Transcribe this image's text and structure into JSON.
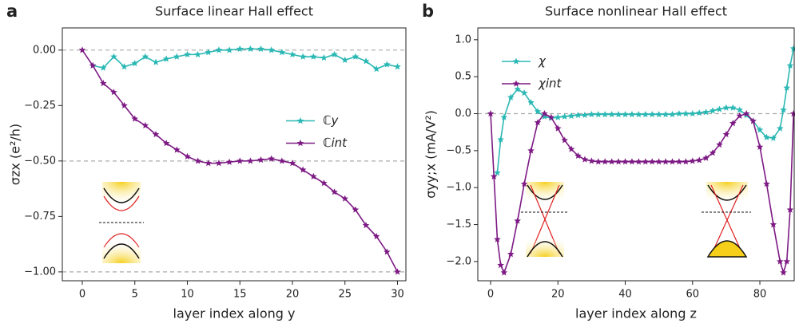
{
  "chart_data": [
    {
      "type": "line",
      "panel": "a",
      "title": "Surface linear Hall effect",
      "xlabel": "layer index along y",
      "ylabel": "σzx (e²/h)",
      "x": [
        0,
        1,
        2,
        3,
        4,
        5,
        6,
        7,
        8,
        9,
        10,
        11,
        12,
        13,
        14,
        15,
        16,
        17,
        18,
        19,
        20,
        21,
        22,
        23,
        24,
        25,
        26,
        27,
        28,
        29,
        30
      ],
      "series": [
        {
          "name": "ℂy",
          "color": "#2bb8b4",
          "values": [
            null,
            -0.07,
            -0.08,
            -0.03,
            -0.075,
            -0.06,
            -0.03,
            -0.055,
            -0.04,
            -0.03,
            -0.02,
            -0.02,
            -0.01,
            0.0,
            0.0,
            0.005,
            0.005,
            0.005,
            0.0,
            -0.01,
            -0.02,
            -0.03,
            -0.03,
            -0.035,
            -0.02,
            -0.045,
            -0.03,
            -0.05,
            -0.085,
            -0.065,
            -0.075
          ]
        },
        {
          "name": "ℂint",
          "color": "#7d1a84",
          "values": [
            0.0,
            -0.07,
            -0.15,
            -0.19,
            -0.25,
            -0.31,
            -0.34,
            -0.38,
            -0.42,
            -0.45,
            -0.48,
            -0.5,
            -0.51,
            -0.51,
            -0.505,
            -0.5,
            -0.5,
            -0.495,
            -0.49,
            -0.5,
            -0.51,
            -0.54,
            -0.57,
            -0.6,
            -0.64,
            -0.67,
            -0.72,
            -0.79,
            -0.84,
            -0.91,
            -1.0
          ]
        }
      ],
      "xlim": [
        -1.9,
        30.8
      ],
      "ylim": [
        -1.04,
        0.1
      ],
      "xticks": [
        0,
        5,
        10,
        15,
        20,
        25,
        30
      ],
      "yticks": [
        {
          "value": 0,
          "label": "0.00"
        },
        {
          "value": -0.25,
          "label": "−0.25"
        },
        {
          "value": -0.5,
          "label": "−0.50"
        },
        {
          "value": -0.75,
          "label": "−0.75"
        },
        {
          "value": -1,
          "label": "−1.00"
        }
      ],
      "reference_lines": [
        0,
        -0.5,
        -1
      ],
      "legend": "center right"
    },
    {
      "type": "line",
      "panel": "b",
      "title": "Surface nonlinear Hall effect",
      "xlabel": "layer index along z",
      "ylabel": "σyy;x (mA/V²)",
      "x": [
        0,
        1,
        2,
        3,
        4,
        6,
        8,
        10,
        12,
        14,
        16,
        18,
        20,
        22,
        24,
        26,
        28,
        30,
        32,
        34,
        36,
        38,
        40,
        42,
        44,
        46,
        48,
        50,
        52,
        54,
        56,
        58,
        60,
        62,
        64,
        66,
        68,
        70,
        72,
        74,
        76,
        78,
        80,
        82,
        84,
        86,
        87,
        88,
        89,
        90
      ],
      "series": [
        {
          "name": "χ",
          "color": "#2bb8b4",
          "values": [
            null,
            null,
            -0.8,
            -0.35,
            -0.05,
            0.22,
            0.33,
            0.28,
            0.15,
            0.03,
            -0.04,
            -0.06,
            -0.05,
            -0.04,
            -0.03,
            -0.02,
            -0.02,
            -0.01,
            -0.01,
            -0.01,
            -0.01,
            -0.01,
            -0.01,
            -0.01,
            -0.01,
            -0.01,
            -0.01,
            -0.01,
            -0.01,
            -0.01,
            0.0,
            0.0,
            0.0,
            0.01,
            0.02,
            0.04,
            0.06,
            0.08,
            0.08,
            0.05,
            -0.02,
            -0.1,
            -0.22,
            -0.32,
            -0.33,
            -0.2,
            0.05,
            0.35,
            0.65,
            0.88
          ]
        },
        {
          "name": "χint",
          "color": "#7d1a84",
          "values": [
            0.0,
            -0.85,
            -1.7,
            -2.05,
            -2.15,
            -1.9,
            -1.45,
            -0.95,
            -0.5,
            -0.12,
            0.0,
            -0.05,
            -0.2,
            -0.36,
            -0.48,
            -0.57,
            -0.62,
            -0.64,
            -0.65,
            -0.65,
            -0.65,
            -0.65,
            -0.65,
            -0.65,
            -0.65,
            -0.65,
            -0.65,
            -0.65,
            -0.65,
            -0.65,
            -0.65,
            -0.65,
            -0.64,
            -0.63,
            -0.6,
            -0.53,
            -0.42,
            -0.28,
            -0.13,
            -0.03,
            0.0,
            -0.1,
            -0.45,
            -0.95,
            -1.5,
            -2.0,
            -2.15,
            -2.0,
            -1.3,
            0.0
          ]
        }
      ],
      "xlim": [
        -3.8,
        90.2
      ],
      "ylim": [
        -2.26,
        1.16
      ],
      "xticks": [
        0,
        20,
        40,
        60,
        80
      ],
      "yticks": [
        {
          "value": 1,
          "label": "1.0"
        },
        {
          "value": 0.5,
          "label": "0.5"
        },
        {
          "value": 0,
          "label": "0.0"
        },
        {
          "value": -0.5,
          "label": "−0.5"
        },
        {
          "value": -1,
          "label": "−1.0"
        },
        {
          "value": -1.5,
          "label": "−1.5"
        },
        {
          "value": -2,
          "label": "−2.0"
        }
      ],
      "reference_lines": [
        0
      ],
      "legend": "upper left"
    }
  ]
}
